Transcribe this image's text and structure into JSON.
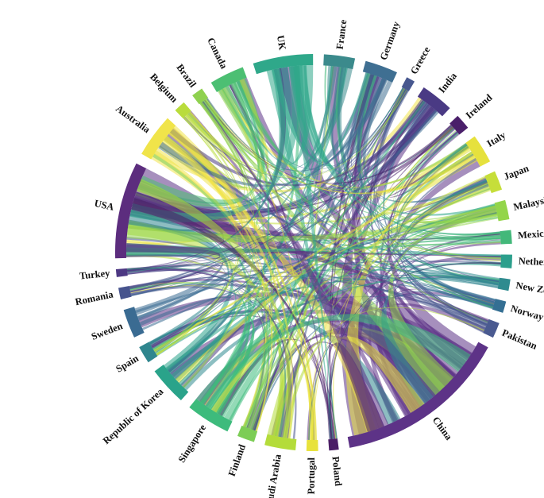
{
  "chart_data": {
    "type": "chord",
    "title": "",
    "countries": [
      {
        "name": "USA",
        "color": "#5c2d7e",
        "weight": 10
      },
      {
        "name": "Australia",
        "color": "#f0e44a",
        "weight": 4.5
      },
      {
        "name": "Belgium",
        "color": "#b9dc3c",
        "weight": 1.2
      },
      {
        "name": "Brazil",
        "color": "#8fd14f",
        "weight": 1.2
      },
      {
        "name": "Canada",
        "color": "#4cbf73",
        "weight": 3.6
      },
      {
        "name": "UK",
        "color": "#2fa88a",
        "weight": 6.2
      },
      {
        "name": "France",
        "color": "#3b8a8c",
        "weight": 3.2
      },
      {
        "name": "Germany",
        "color": "#3f6f92",
        "weight": 3.4
      },
      {
        "name": "Greece",
        "color": "#48588f",
        "weight": 0.9
      },
      {
        "name": "India",
        "color": "#4a3a84",
        "weight": 3.4
      },
      {
        "name": "Ireland",
        "color": "#4a1f6a",
        "weight": 1.6
      },
      {
        "name": "Italy",
        "color": "#e6e13d",
        "weight": 3.0
      },
      {
        "name": "Japan",
        "color": "#c6de3a",
        "weight": 2.0
      },
      {
        "name": "Malaysia",
        "color": "#93d54a",
        "weight": 2.0
      },
      {
        "name": "Mexico",
        "color": "#43b87a",
        "weight": 1.4
      },
      {
        "name": "Netherlands",
        "color": "#2c9f8c",
        "weight": 1.4
      },
      {
        "name": "New Zealand",
        "color": "#2f8b8f",
        "weight": 1.2
      },
      {
        "name": "Norway",
        "color": "#346f93",
        "weight": 1.2
      },
      {
        "name": "Pakistan",
        "color": "#4a5a90",
        "weight": 1.6
      },
      {
        "name": "China",
        "color": "#5d3387",
        "weight": 18
      },
      {
        "name": "Poland",
        "color": "#4b1e66",
        "weight": 1.0
      },
      {
        "name": "Portugal",
        "color": "#e8e23c",
        "weight": 1.2
      },
      {
        "name": "Saudi Arabia",
        "color": "#b4dc3a",
        "weight": 3.2
      },
      {
        "name": "Finland",
        "color": "#7ccd55",
        "weight": 1.8
      },
      {
        "name": "Singapore",
        "color": "#3dbb7c",
        "weight": 4.6
      },
      {
        "name": "Republic of Korea",
        "color": "#2aa38a",
        "weight": 4.0
      },
      {
        "name": "Spain",
        "color": "#2f868e",
        "weight": 1.8
      },
      {
        "name": "Sweden",
        "color": "#3a6b92",
        "weight": 3.0
      },
      {
        "name": "Romania",
        "color": "#47548e",
        "weight": 1.2
      },
      {
        "name": "Turkey",
        "color": "#4d3883",
        "weight": 0.8
      }
    ]
  }
}
